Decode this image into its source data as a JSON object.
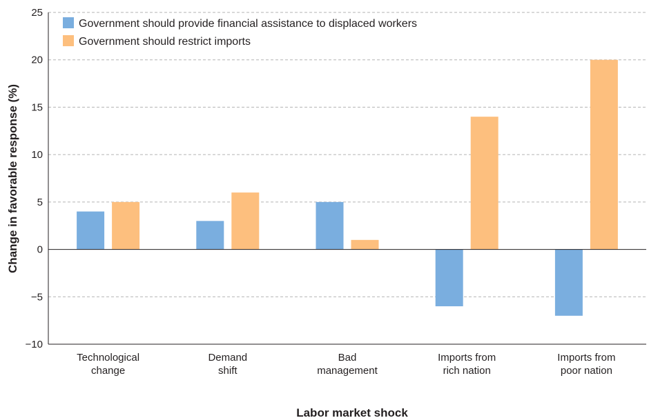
{
  "chart_data": {
    "type": "bar",
    "title": "",
    "xlabel": "Labor market shock",
    "ylabel": "Change in favorable response (%)",
    "ylim": [
      -10,
      25
    ],
    "yticks": [
      -10,
      -5,
      0,
      5,
      10,
      15,
      20,
      25
    ],
    "ytick_labels": [
      "−10",
      "−5",
      "0",
      "5",
      "10",
      "15",
      "20",
      "25"
    ],
    "grid": true,
    "legend_position": "top-left",
    "categories": [
      [
        "Technological",
        "change"
      ],
      [
        "Demand",
        "shift"
      ],
      [
        "Bad",
        "management"
      ],
      [
        "Imports from",
        "rich nation"
      ],
      [
        "Imports from",
        "poor nation"
      ]
    ],
    "series": [
      {
        "name": "Government should provide financial assistance to displaced workers",
        "color": "#7aaedf",
        "values": [
          4,
          3,
          5,
          -6,
          -7
        ]
      },
      {
        "name": "Government should restrict imports",
        "color": "#fdbf7e",
        "values": [
          5,
          6,
          1,
          14,
          20
        ]
      }
    ]
  }
}
